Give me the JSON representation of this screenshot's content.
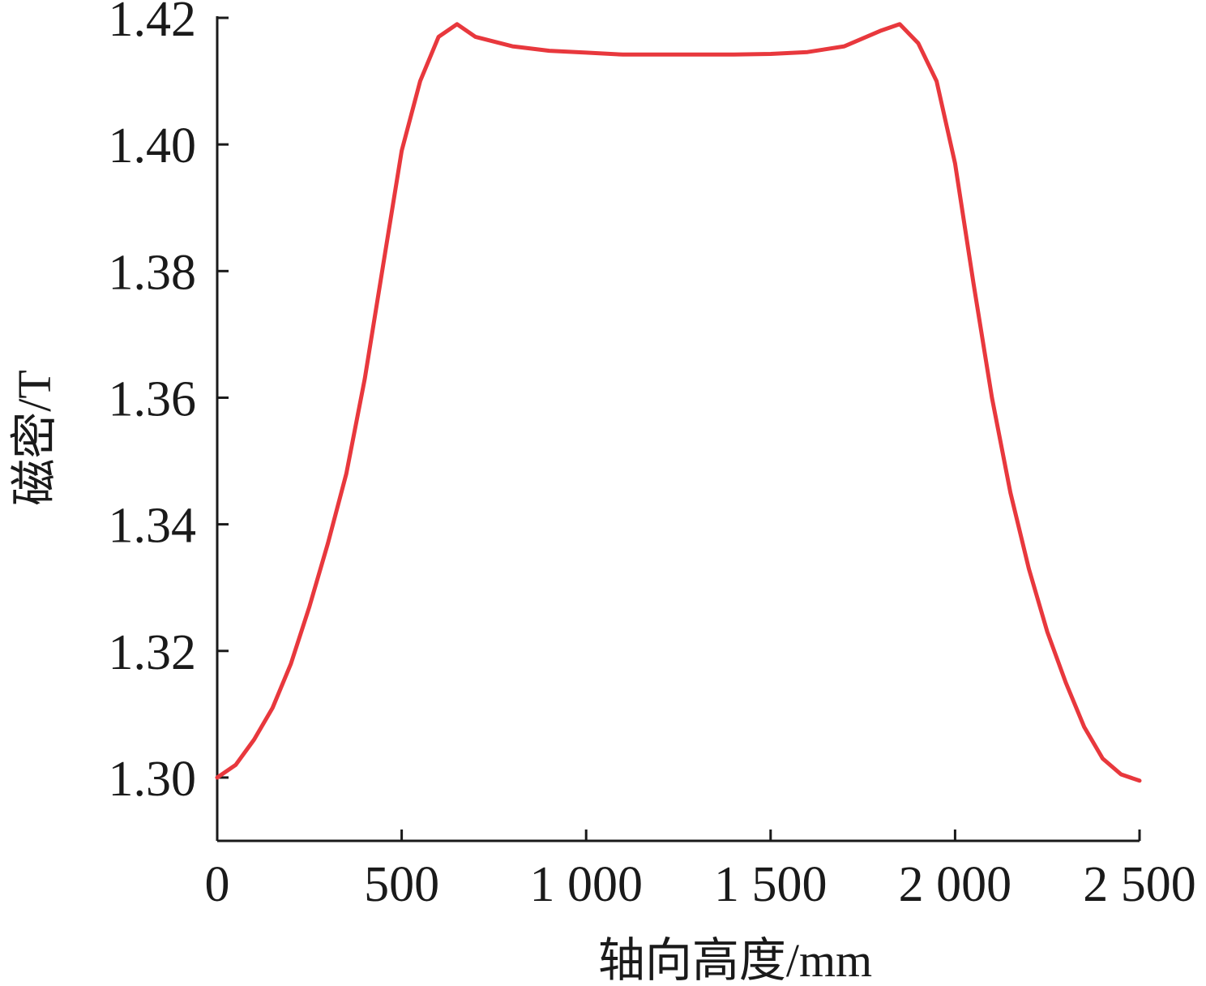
{
  "chart_data": {
    "type": "line",
    "xlabel": "轴向高度/mm",
    "ylabel": "磁密/T",
    "xlim": [
      0,
      2500
    ],
    "ylim": [
      1.29,
      1.42
    ],
    "x_ticks": [
      0,
      500,
      1000,
      1500,
      2000,
      2500
    ],
    "x_tick_labels": [
      "0",
      "500",
      "1 000",
      "1 500",
      "2 000",
      "2 500"
    ],
    "y_ticks": [
      1.3,
      1.32,
      1.34,
      1.36,
      1.38,
      1.4,
      1.42
    ],
    "y_tick_labels": [
      "1.30",
      "1.32",
      "1.34",
      "1.36",
      "1.38",
      "1.40",
      "1.42"
    ],
    "grid": false,
    "series": [
      {
        "color": "#e8383d",
        "x": [
          0,
          50,
          100,
          150,
          200,
          250,
          300,
          350,
          400,
          450,
          500,
          550,
          600,
          650,
          700,
          800,
          900,
          1000,
          1100,
          1200,
          1300,
          1400,
          1500,
          1600,
          1700,
          1800,
          1850,
          1900,
          1950,
          2000,
          2050,
          2100,
          2150,
          2200,
          2250,
          2300,
          2350,
          2400,
          2450,
          2500
        ],
        "y": [
          1.3,
          1.302,
          1.306,
          1.311,
          1.318,
          1.327,
          1.337,
          1.348,
          1.363,
          1.381,
          1.399,
          1.41,
          1.417,
          1.419,
          1.417,
          1.4155,
          1.4148,
          1.4145,
          1.4142,
          1.4142,
          1.4142,
          1.4142,
          1.4143,
          1.4146,
          1.4155,
          1.418,
          1.419,
          1.416,
          1.41,
          1.397,
          1.378,
          1.36,
          1.345,
          1.333,
          1.323,
          1.315,
          1.308,
          1.303,
          1.3005,
          1.2995
        ]
      }
    ]
  }
}
